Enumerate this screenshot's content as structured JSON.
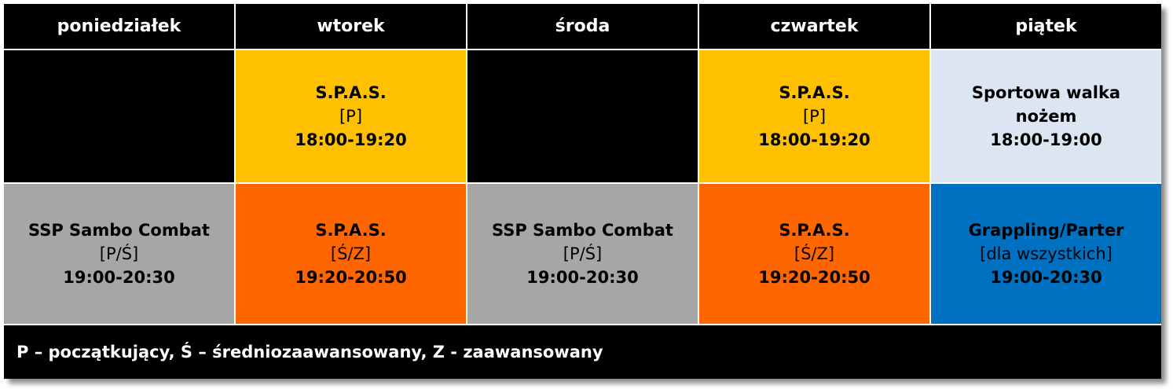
{
  "header": {
    "days": [
      "poniedziałek",
      "wtorek",
      "środa",
      "czwartek",
      "piątek"
    ]
  },
  "rows": [
    [
      {
        "color": "#000000"
      },
      {
        "color": "#ffc000",
        "title": "S.P.A.S.",
        "level": "[P]",
        "time": "18:00-19:20"
      },
      {
        "color": "#000000"
      },
      {
        "color": "#ffc000",
        "title": "S.P.A.S.",
        "level": "[P]",
        "time": "18:00-19:20"
      },
      {
        "color": "#dce6f2",
        "title": "Sportowa walka nożem",
        "time": "18:00-19:00"
      }
    ],
    [
      {
        "color": "#a6a6a6",
        "title": "SSP Sambo Combat",
        "level": "[P/Ś]",
        "time": "19:00-20:30"
      },
      {
        "color": "#ff6600",
        "title": "S.P.A.S.",
        "level": "[Ś/Z]",
        "time": "19:20-20:50"
      },
      {
        "color": "#a6a6a6",
        "title": "SSP Sambo Combat",
        "level": "[P/Ś]",
        "time": "19:00-20:30"
      },
      {
        "color": "#ff6600",
        "title": "S.P.A.S.",
        "level": "[Ś/Z]",
        "time": "19:20-20:50"
      },
      {
        "color": "#0070c0",
        "title": "Grappling/Parter",
        "level": "[dla wszystkich]",
        "time": "19:00-20:30"
      }
    ]
  ],
  "footer": "P – początkujący, Ś – średniozaawansowany, Z - zaawansowany"
}
